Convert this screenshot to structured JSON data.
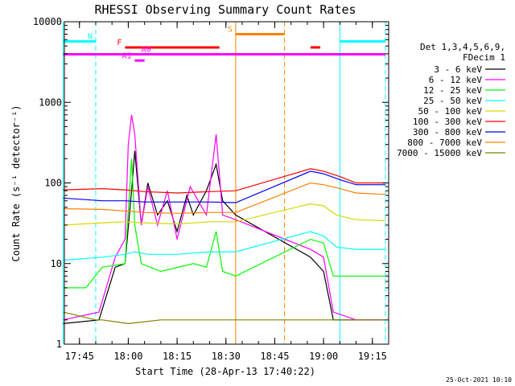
{
  "chart_data": {
    "type": "line",
    "title": "RHESSI Observing Summary Count Rates",
    "xlabel": "Start Time (28-Apr-13 17:40:22)",
    "ylabel": "Count Rate (s⁻¹ detector⁻¹)",
    "y_scale": "log",
    "ylim": [
      1,
      10000
    ],
    "xlim": [
      "17:40:22",
      "19:20:00"
    ],
    "x_tick_labels": [
      "17:45",
      "18:00",
      "18:15",
      "18:30",
      "18:45",
      "19:00",
      "19:15"
    ],
    "y_tick_labels": [
      "1",
      "10",
      "100",
      "1000",
      "10000"
    ],
    "legend_position": "right",
    "legend_header": [
      "Det 1,3,4,5,6,9,",
      "FDecim 1"
    ],
    "series": [
      {
        "name": "3 - 6 keV",
        "color": "#000000",
        "x": [
          "17:40",
          "17:51",
          "17:56",
          "17:59",
          "18:01",
          "18:02",
          "18:04",
          "18:06",
          "18:09",
          "18:12",
          "18:15",
          "18:18",
          "18:20",
          "18:24",
          "18:27",
          "18:29",
          "18:33",
          "18:56",
          "19:00",
          "19:03",
          "19:10",
          "19:19"
        ],
        "values": [
          1.8,
          2,
          9,
          10,
          80,
          250,
          30,
          100,
          40,
          60,
          25,
          70,
          40,
          80,
          170,
          60,
          40,
          12,
          8,
          2,
          2,
          2
        ]
      },
      {
        "name": "6 - 12 keV",
        "color": "#ff00ff",
        "x": [
          "17:40",
          "17:51",
          "17:56",
          "17:59",
          "18:00",
          "18:01",
          "18:02",
          "18:04",
          "18:06",
          "18:09",
          "18:12",
          "18:15",
          "18:19",
          "18:24",
          "18:27",
          "18:29",
          "18:33",
          "18:56",
          "19:00",
          "19:03",
          "19:10",
          "19:19"
        ],
        "values": [
          2,
          2.5,
          12,
          20,
          300,
          700,
          400,
          30,
          90,
          30,
          80,
          20,
          90,
          40,
          400,
          40,
          35,
          15,
          12,
          2.5,
          2,
          2
        ]
      },
      {
        "name": "12 - 25 keV",
        "color": "#00ff00",
        "x": [
          "17:40",
          "17:47",
          "17:52",
          "17:59",
          "18:01",
          "18:02",
          "18:04",
          "18:10",
          "18:20",
          "18:24",
          "18:27",
          "18:29",
          "18:33",
          "18:56",
          "19:00",
          "19:03",
          "19:10",
          "19:19"
        ],
        "values": [
          5,
          5,
          9,
          10,
          200,
          30,
          10,
          8,
          10,
          9,
          25,
          8,
          7,
          20,
          18,
          7,
          7,
          7
        ]
      },
      {
        "name": "25 - 50 keV",
        "color": "#00ffff",
        "x": [
          "17:40",
          "17:52",
          "17:59",
          "18:02",
          "18:06",
          "18:15",
          "18:25",
          "18:33",
          "18:56",
          "19:00",
          "19:04",
          "19:10",
          "19:19"
        ],
        "values": [
          11,
          12,
          13,
          14,
          13,
          13,
          14,
          14,
          25,
          22,
          16,
          15,
          15
        ]
      },
      {
        "name": "50 - 100 keV",
        "color": "#d8d800",
        "x": [
          "17:40",
          "17:52",
          "17:59",
          "18:05",
          "18:15",
          "18:25",
          "18:33",
          "18:56",
          "19:00",
          "19:04",
          "19:10",
          "19:19"
        ],
        "values": [
          30,
          32,
          33,
          32,
          31,
          33,
          33,
          55,
          52,
          40,
          35,
          34
        ]
      },
      {
        "name": "100 - 300 keV",
        "color": "#ff0000",
        "x": [
          "17:40",
          "17:52",
          "17:59",
          "18:05",
          "18:15",
          "18:25",
          "18:33",
          "18:56",
          "19:00",
          "19:05",
          "19:10",
          "19:19"
        ],
        "values": [
          82,
          85,
          82,
          78,
          75,
          78,
          80,
          150,
          140,
          120,
          100,
          100
        ]
      },
      {
        "name": "300 - 800 keV",
        "color": "#0000ff",
        "x": [
          "17:40",
          "17:52",
          "17:59",
          "18:05",
          "18:15",
          "18:25",
          "18:33",
          "18:56",
          "19:00",
          "19:05",
          "19:10",
          "19:19"
        ],
        "values": [
          65,
          60,
          60,
          58,
          58,
          58,
          57,
          140,
          130,
          110,
          95,
          95
        ]
      },
      {
        "name": "800 - 7000 keV",
        "color": "#ff8000",
        "x": [
          "17:40",
          "17:52",
          "17:59",
          "18:05",
          "18:15",
          "18:25",
          "18:33",
          "18:56",
          "19:00",
          "19:05",
          "19:10",
          "19:19"
        ],
        "values": [
          48,
          47,
          45,
          43,
          42,
          43,
          43,
          100,
          95,
          85,
          75,
          72
        ]
      },
      {
        "name": "7000 - 15000 keV",
        "color": "#808000",
        "x": [
          "17:40",
          "17:50",
          "17:52",
          "18:00",
          "18:10",
          "18:20",
          "18:33",
          "18:56",
          "19:00",
          "19:05",
          "19:10",
          "19:19"
        ],
        "values": [
          2.5,
          2,
          2,
          1.8,
          2,
          2,
          2,
          2,
          2,
          2,
          2,
          2
        ]
      }
    ],
    "annotations": [
      {
        "label": "N",
        "color": "#00ffff",
        "level": 5700,
        "segments": [
          [
            "17:40",
            "17:50"
          ],
          [
            "19:05",
            "19:19"
          ]
        ],
        "markers": [
          "17:40",
          "17:50",
          "19:05",
          "19:19"
        ]
      },
      {
        "label": "F",
        "color": "#ff0000",
        "level": 4800,
        "segments": [
          [
            "17:59",
            "18:28"
          ],
          [
            "18:56",
            "18:59"
          ]
        ]
      },
      {
        "label": "S",
        "color": "#ff8000",
        "level": 7000,
        "segments": [
          [
            "18:33",
            "18:48"
          ]
        ],
        "markers": [
          "18:33",
          "18:48"
        ]
      },
      {
        "label": "A0",
        "color": "#ff00ff",
        "level": 3950,
        "segments": [
          [
            "17:40",
            "19:19"
          ]
        ]
      },
      {
        "label": "A1",
        "color": "#ff00ff",
        "level": 3300,
        "segments": [
          [
            "18:02",
            "18:05"
          ]
        ]
      }
    ],
    "timestamp": "25-Oct-2021 10:10"
  }
}
